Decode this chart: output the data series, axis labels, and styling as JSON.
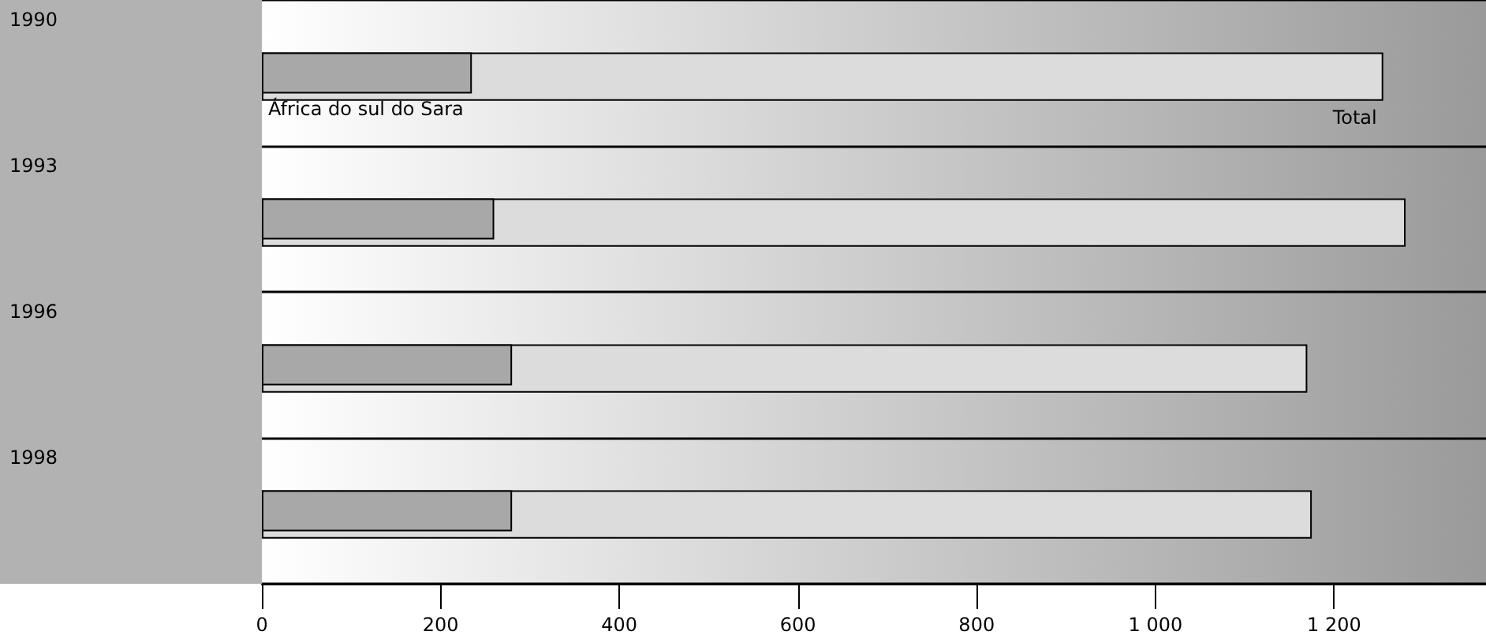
{
  "chart_data": {
    "type": "bar",
    "orientation": "horizontal",
    "categories": [
      "1990",
      "1993",
      "1996",
      "1998"
    ],
    "series": [
      {
        "name": "Total",
        "color": "#dcdcdc",
        "values": [
          1255,
          1280,
          1170,
          1175
        ]
      },
      {
        "name": "África do sul do Sara",
        "color": "#a8a8a8",
        "values": [
          235,
          260,
          280,
          280
        ]
      }
    ],
    "xlim": [
      0,
      1370
    ],
    "xticks": [
      0,
      200,
      400,
      600,
      800,
      {
        "value": 1000,
        "label": "1 000"
      },
      {
        "value": 1200,
        "label": "1 200"
      }
    ],
    "grid": "y"
  }
}
